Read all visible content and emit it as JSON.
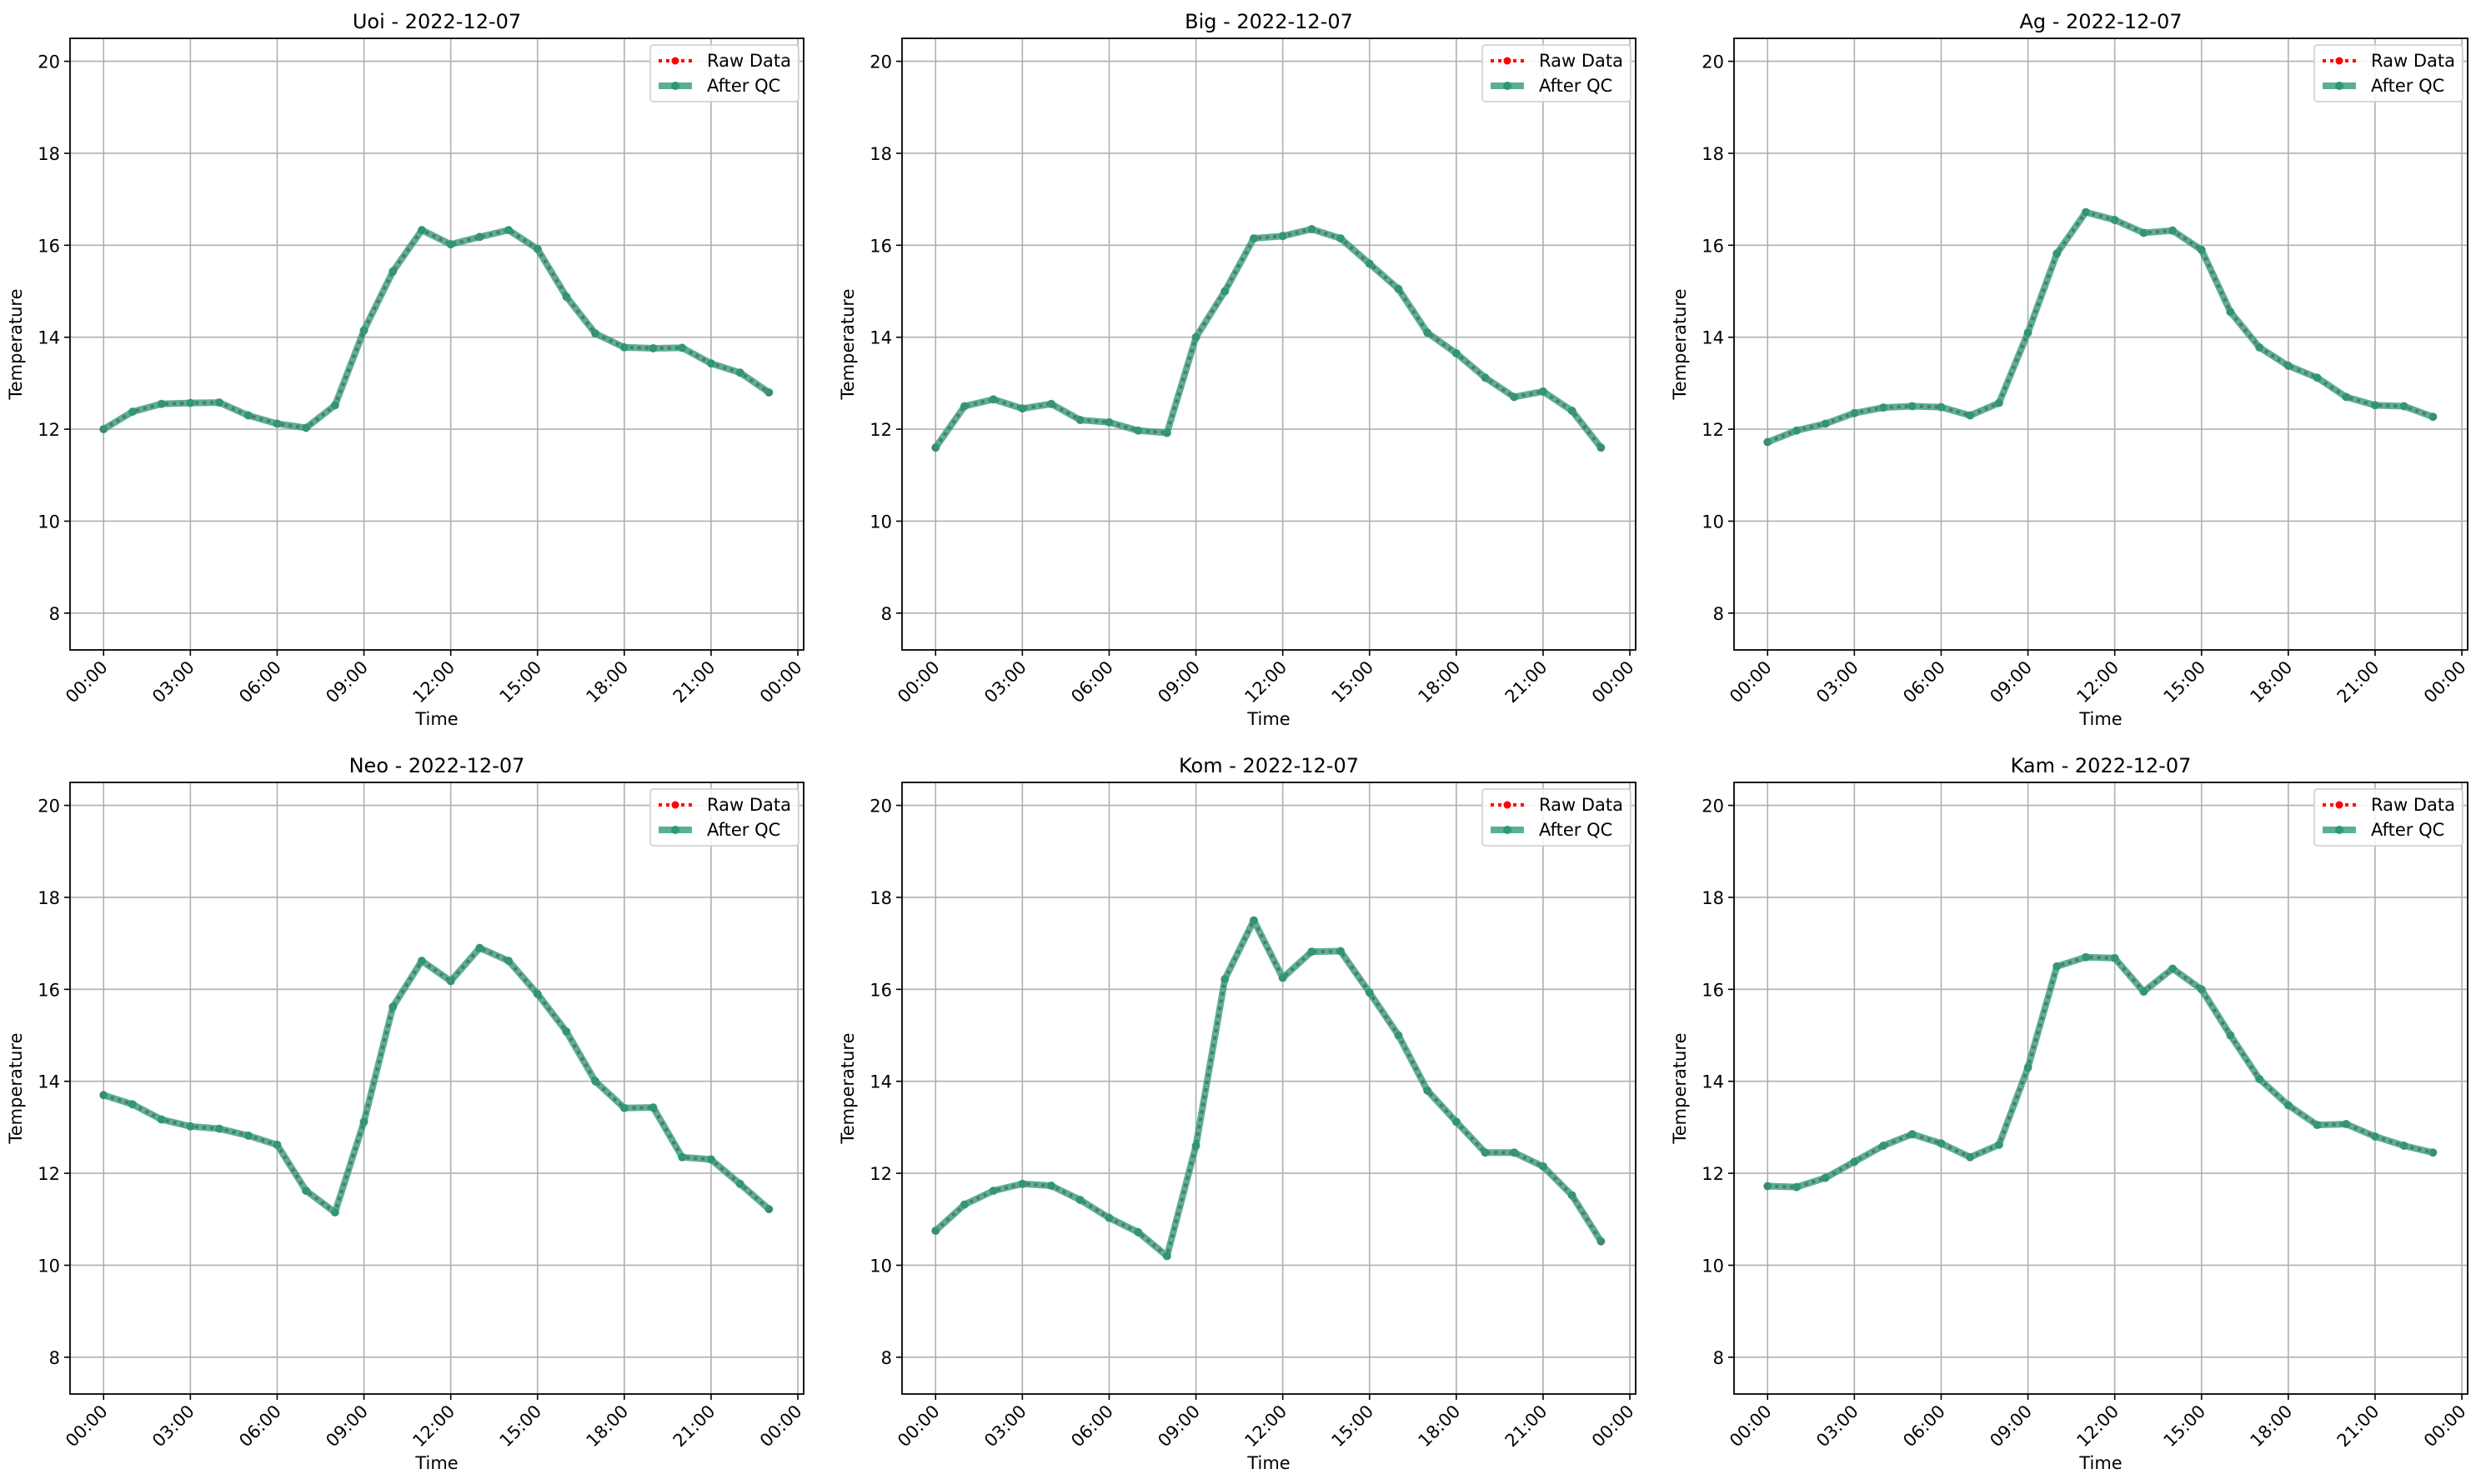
{
  "colors": {
    "raw": "#ff0000",
    "qc": "#2a9a7a",
    "grid": "#b0b0b0"
  },
  "chart_data": [
    {
      "type": "line",
      "title": "Uoi - 2022-12-07",
      "xlabel": "Time",
      "ylabel": "Temperature",
      "ylim": [
        7.2,
        20.5
      ],
      "yticks": [
        "8",
        "10",
        "12",
        "14",
        "16",
        "18",
        "20"
      ],
      "xticks": [
        "00:00",
        "03:00",
        "06:00",
        "09:00",
        "12:00",
        "15:00",
        "18:00",
        "21:00",
        "00:00"
      ],
      "grid": true,
      "legend_position": "top-right",
      "x_hours": [
        0,
        1,
        2,
        3,
        4,
        5,
        6,
        7,
        8,
        9,
        10,
        11,
        12,
        13,
        14,
        15,
        16,
        17,
        18,
        19,
        20,
        21,
        22,
        23
      ],
      "series": [
        {
          "name": "Raw Data",
          "values": [
            12.0,
            12.38,
            12.55,
            12.57,
            12.58,
            12.3,
            12.12,
            12.03,
            12.52,
            14.15,
            15.43,
            16.33,
            16.02,
            16.18,
            16.33,
            15.92,
            14.88,
            14.08,
            13.78,
            13.76,
            13.77,
            13.43,
            13.23,
            12.8
          ]
        },
        {
          "name": "After QC",
          "values": [
            12.0,
            12.38,
            12.55,
            12.57,
            12.58,
            12.3,
            12.12,
            12.03,
            12.52,
            14.15,
            15.43,
            16.33,
            16.02,
            16.18,
            16.33,
            15.92,
            14.88,
            14.08,
            13.78,
            13.76,
            13.77,
            13.43,
            13.23,
            12.8
          ]
        }
      ]
    },
    {
      "type": "line",
      "title": "Big - 2022-12-07",
      "xlabel": "Time",
      "ylabel": "Temperature",
      "ylim": [
        7.2,
        20.5
      ],
      "yticks": [
        "8",
        "10",
        "12",
        "14",
        "16",
        "18",
        "20"
      ],
      "xticks": [
        "00:00",
        "03:00",
        "06:00",
        "09:00",
        "12:00",
        "15:00",
        "18:00",
        "21:00",
        "00:00"
      ],
      "grid": true,
      "legend_position": "top-right",
      "x_hours": [
        0,
        1,
        2,
        3,
        4,
        5,
        6,
        7,
        8,
        9,
        10,
        11,
        12,
        13,
        14,
        15,
        16,
        17,
        18,
        19,
        20,
        21,
        22,
        23
      ],
      "series": [
        {
          "name": "Raw Data",
          "values": [
            11.6,
            12.5,
            12.65,
            12.45,
            12.55,
            12.2,
            12.15,
            11.97,
            11.92,
            14.0,
            15.0,
            16.15,
            16.2,
            16.35,
            16.15,
            15.6,
            15.05,
            14.1,
            13.65,
            13.12,
            12.7,
            12.82,
            12.4,
            11.6
          ]
        },
        {
          "name": "After QC",
          "values": [
            11.6,
            12.5,
            12.65,
            12.45,
            12.55,
            12.2,
            12.15,
            11.97,
            11.92,
            14.0,
            15.0,
            16.15,
            16.2,
            16.35,
            16.15,
            15.6,
            15.05,
            14.1,
            13.65,
            13.12,
            12.7,
            12.82,
            12.4,
            11.6
          ]
        }
      ]
    },
    {
      "type": "line",
      "title": "Ag - 2022-12-07",
      "xlabel": "Time",
      "ylabel": "Temperature",
      "ylim": [
        7.2,
        20.5
      ],
      "yticks": [
        "8",
        "10",
        "12",
        "14",
        "16",
        "18",
        "20"
      ],
      "xticks": [
        "00:00",
        "03:00",
        "06:00",
        "09:00",
        "12:00",
        "15:00",
        "18:00",
        "21:00",
        "00:00"
      ],
      "grid": true,
      "legend_position": "top-right",
      "x_hours": [
        0,
        1,
        2,
        3,
        4,
        5,
        6,
        7,
        8,
        9,
        10,
        11,
        12,
        13,
        14,
        15,
        16,
        17,
        18,
        19,
        20,
        21,
        22,
        23
      ],
      "series": [
        {
          "name": "Raw Data",
          "values": [
            11.72,
            11.97,
            12.12,
            12.35,
            12.47,
            12.5,
            12.48,
            12.3,
            12.57,
            14.1,
            15.82,
            16.72,
            16.55,
            16.27,
            16.32,
            15.9,
            14.55,
            13.78,
            13.38,
            13.12,
            12.7,
            12.52,
            12.5,
            12.27
          ]
        },
        {
          "name": "After QC",
          "values": [
            11.72,
            11.97,
            12.12,
            12.35,
            12.47,
            12.5,
            12.48,
            12.3,
            12.57,
            14.1,
            15.82,
            16.72,
            16.55,
            16.27,
            16.32,
            15.9,
            14.55,
            13.78,
            13.38,
            13.12,
            12.7,
            12.52,
            12.5,
            12.27
          ]
        }
      ]
    },
    {
      "type": "line",
      "title": "Neo - 2022-12-07",
      "xlabel": "Time",
      "ylabel": "Temperature",
      "ylim": [
        7.2,
        20.5
      ],
      "yticks": [
        "8",
        "10",
        "12",
        "14",
        "16",
        "18",
        "20"
      ],
      "xticks": [
        "00:00",
        "03:00",
        "06:00",
        "09:00",
        "12:00",
        "15:00",
        "18:00",
        "21:00",
        "00:00"
      ],
      "grid": true,
      "legend_position": "top-right",
      "x_hours": [
        0,
        1,
        2,
        3,
        4,
        5,
        6,
        7,
        8,
        9,
        10,
        11,
        12,
        13,
        14,
        15,
        16,
        17,
        18,
        19,
        20,
        21,
        22,
        23
      ],
      "series": [
        {
          "name": "Raw Data",
          "values": [
            13.7,
            13.5,
            13.17,
            13.02,
            12.97,
            12.82,
            12.62,
            11.62,
            11.15,
            13.12,
            15.62,
            16.62,
            16.18,
            16.9,
            16.62,
            15.9,
            15.08,
            14.0,
            13.42,
            13.43,
            12.35,
            12.3,
            11.77,
            11.22
          ]
        },
        {
          "name": "After QC",
          "values": [
            13.7,
            13.5,
            13.17,
            13.02,
            12.97,
            12.82,
            12.62,
            11.62,
            11.15,
            13.12,
            15.62,
            16.62,
            16.18,
            16.9,
            16.62,
            15.9,
            15.08,
            14.0,
            13.42,
            13.43,
            12.35,
            12.3,
            11.77,
            11.22
          ]
        }
      ]
    },
    {
      "type": "line",
      "title": "Kom - 2022-12-07",
      "xlabel": "Time",
      "ylabel": "Temperature",
      "ylim": [
        7.2,
        20.5
      ],
      "yticks": [
        "8",
        "10",
        "12",
        "14",
        "16",
        "18",
        "20"
      ],
      "xticks": [
        "00:00",
        "03:00",
        "06:00",
        "09:00",
        "12:00",
        "15:00",
        "18:00",
        "21:00",
        "00:00"
      ],
      "grid": true,
      "legend_position": "top-right",
      "x_hours": [
        0,
        1,
        2,
        3,
        4,
        5,
        6,
        7,
        8,
        9,
        10,
        11,
        12,
        13,
        14,
        15,
        16,
        17,
        18,
        19,
        20,
        21,
        22,
        23
      ],
      "series": [
        {
          "name": "Raw Data",
          "values": [
            10.75,
            11.32,
            11.62,
            11.77,
            11.73,
            11.42,
            11.03,
            10.72,
            10.2,
            12.6,
            16.22,
            17.5,
            16.25,
            16.82,
            16.83,
            15.93,
            15.0,
            13.8,
            13.12,
            12.45,
            12.45,
            12.15,
            11.52,
            10.52
          ]
        },
        {
          "name": "After QC",
          "values": [
            10.75,
            11.32,
            11.62,
            11.77,
            11.73,
            11.42,
            11.03,
            10.72,
            10.2,
            12.6,
            16.22,
            17.5,
            16.25,
            16.82,
            16.83,
            15.93,
            15.0,
            13.8,
            13.12,
            12.45,
            12.45,
            12.15,
            11.52,
            10.52
          ]
        }
      ]
    },
    {
      "type": "line",
      "title": "Kam - 2022-12-07",
      "xlabel": "Time",
      "ylabel": "Temperature",
      "ylim": [
        7.2,
        20.5
      ],
      "yticks": [
        "8",
        "10",
        "12",
        "14",
        "16",
        "18",
        "20"
      ],
      "xticks": [
        "00:00",
        "03:00",
        "06:00",
        "09:00",
        "12:00",
        "15:00",
        "18:00",
        "21:00",
        "00:00"
      ],
      "grid": true,
      "legend_position": "top-right",
      "x_hours": [
        0,
        1,
        2,
        3,
        4,
        5,
        6,
        7,
        8,
        9,
        10,
        11,
        12,
        13,
        14,
        15,
        16,
        17,
        18,
        19,
        20,
        21,
        22,
        23
      ],
      "series": [
        {
          "name": "Raw Data",
          "values": [
            11.72,
            11.7,
            11.9,
            12.25,
            12.6,
            12.85,
            12.65,
            12.35,
            12.62,
            14.3,
            16.5,
            16.7,
            16.68,
            15.95,
            16.45,
            16.0,
            15.0,
            14.05,
            13.48,
            13.05,
            13.07,
            12.8,
            12.6,
            12.45
          ]
        },
        {
          "name": "After QC",
          "values": [
            11.72,
            11.7,
            11.9,
            12.25,
            12.6,
            12.85,
            12.65,
            12.35,
            12.62,
            14.3,
            16.5,
            16.7,
            16.68,
            15.95,
            16.45,
            16.0,
            15.0,
            14.05,
            13.48,
            13.05,
            13.07,
            12.8,
            12.6,
            12.45
          ]
        }
      ]
    }
  ]
}
